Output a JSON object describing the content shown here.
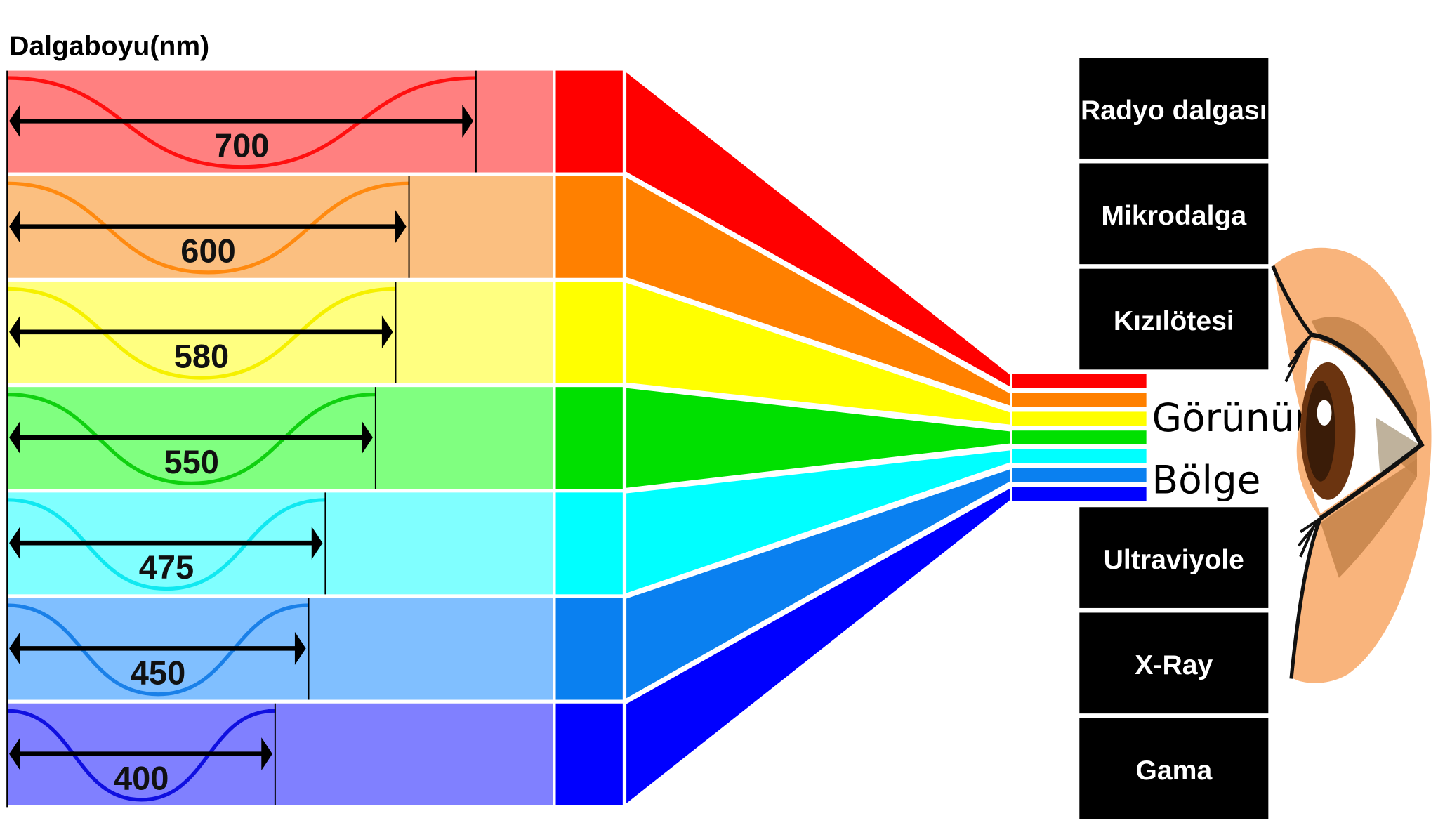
{
  "title": "Dalgaboyu(nm)",
  "rows": [
    {
      "wavelength": "700",
      "light": "#ff8080",
      "color": "#ff0000",
      "wave": "#ff1010"
    },
    {
      "wavelength": "600",
      "light": "#fbbf80",
      "color": "#ff8000",
      "wave": "#ff8a10"
    },
    {
      "wavelength": "580",
      "light": "#ffff80",
      "color": "#ffff00",
      "wave": "#f5f000"
    },
    {
      "wavelength": "550",
      "light": "#80ff80",
      "color": "#00e000",
      "wave": "#10d010"
    },
    {
      "wavelength": "475",
      "light": "#80ffff",
      "color": "#00ffff",
      "wave": "#10e8f0"
    },
    {
      "wavelength": "450",
      "light": "#80bfff",
      "color": "#0a80f0",
      "wave": "#1a80e8"
    },
    {
      "wavelength": "400",
      "light": "#8080ff",
      "color": "#0000ff",
      "wave": "#1010e0"
    }
  ],
  "visible": {
    "line1": "Görünür",
    "line2": "Bölge"
  },
  "spectrum_top": [
    "Radyo dalgası",
    "Mikrodalga",
    "Kızılötesi"
  ],
  "spectrum_bottom": [
    "Ultraviyole",
    "X-Ray",
    "Gama"
  ],
  "icons": {
    "eye": "eye-illustration"
  }
}
